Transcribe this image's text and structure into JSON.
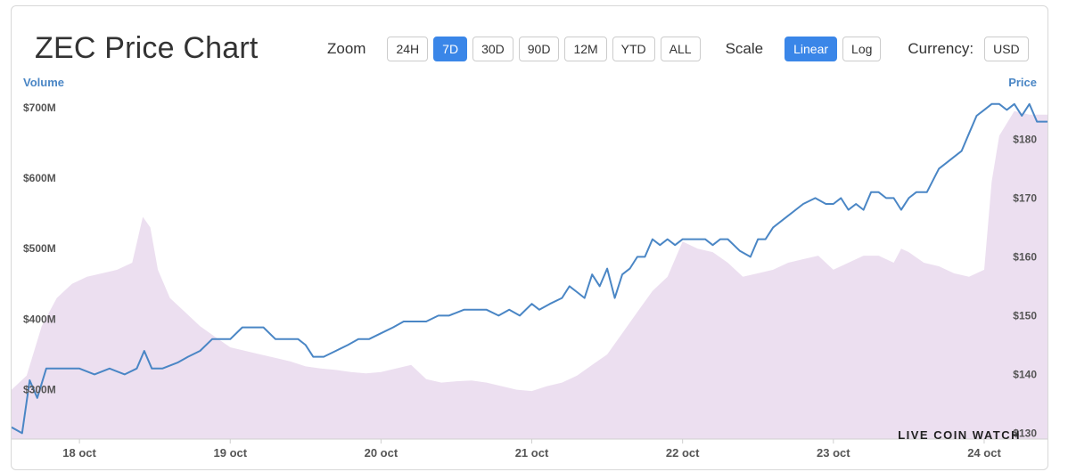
{
  "header": {
    "title": "ZEC Price Chart",
    "zoom_label": "Zoom",
    "zoom_options": [
      "24H",
      "7D",
      "30D",
      "90D",
      "12M",
      "YTD",
      "ALL"
    ],
    "zoom_selected": "7D",
    "scale_label": "Scale",
    "scale_options": [
      "Linear",
      "Log"
    ],
    "scale_selected": "Linear",
    "currency_label": "Currency:",
    "currency_value": "USD"
  },
  "watermark": "LIVE COIN WATCH",
  "colors": {
    "price_line": "#4a86c5",
    "volume_fill": "#ecdff0",
    "accent": "#3a86e8",
    "axis_title": "#4a86c5"
  },
  "chart_data": {
    "type": "line",
    "title": "ZEC Price Chart",
    "x_axis": {
      "tick_labels": [
        "18 oct",
        "19 oct",
        "20 oct",
        "21 oct",
        "22 oct",
        "23 oct",
        "24 oct"
      ],
      "range_days": [
        17.55,
        24.42
      ]
    },
    "y_left": {
      "label": "Volume",
      "tick_labels": [
        "$300M",
        "$400M",
        "$500M",
        "$600M",
        "$700M"
      ],
      "tick_values": [
        300,
        400,
        500,
        600,
        700
      ],
      "range": [
        230,
        730
      ],
      "unit": "USD millions"
    },
    "y_right": {
      "label": "Price",
      "tick_labels": [
        "$130",
        "$140",
        "$150",
        "$160",
        "$170",
        "$180"
      ],
      "tick_values": [
        130,
        140,
        150,
        160,
        170,
        180
      ],
      "range": [
        129,
        189
      ],
      "unit": "USD"
    },
    "grid": false,
    "series": [
      {
        "name": "Price",
        "type": "line",
        "axis": "right",
        "x": [
          17.55,
          17.62,
          17.67,
          17.72,
          17.78,
          17.85,
          17.92,
          18.0,
          18.1,
          18.2,
          18.3,
          18.38,
          18.43,
          18.48,
          18.55,
          18.65,
          18.72,
          18.8,
          18.88,
          18.95,
          19.0,
          19.08,
          19.15,
          19.22,
          19.3,
          19.38,
          19.45,
          19.5,
          19.55,
          19.62,
          19.7,
          19.78,
          19.85,
          19.92,
          20.0,
          20.08,
          20.15,
          20.22,
          20.3,
          20.38,
          20.45,
          20.55,
          20.62,
          20.7,
          20.78,
          20.85,
          20.92,
          21.0,
          21.05,
          21.12,
          21.2,
          21.25,
          21.3,
          21.35,
          21.4,
          21.45,
          21.5,
          21.55,
          21.6,
          21.65,
          21.7,
          21.75,
          21.8,
          21.85,
          21.9,
          21.95,
          22.0,
          22.05,
          22.1,
          22.15,
          22.2,
          22.25,
          22.3,
          22.38,
          22.45,
          22.5,
          22.55,
          22.6,
          22.7,
          22.8,
          22.88,
          22.95,
          23.0,
          23.05,
          23.1,
          23.15,
          23.2,
          23.25,
          23.3,
          23.35,
          23.4,
          23.45,
          23.5,
          23.55,
          23.62,
          23.7,
          23.75,
          23.8,
          23.85,
          23.9,
          23.95,
          24.0,
          24.05,
          24.1,
          24.15,
          24.2,
          24.25,
          24.3,
          24.35,
          24.42
        ],
        "values": [
          131,
          130,
          139,
          136,
          141,
          141,
          141,
          141,
          140,
          141,
          140,
          141,
          144,
          141,
          141,
          142,
          143,
          144,
          146,
          146,
          146,
          148,
          148,
          148,
          146,
          146,
          146,
          145,
          143,
          143,
          144,
          145,
          146,
          146,
          147,
          148,
          149,
          149,
          149,
          150,
          150,
          151,
          151,
          151,
          150,
          151,
          150,
          152,
          151,
          152,
          153,
          155,
          154,
          153,
          157,
          155,
          158,
          153,
          157,
          158,
          160,
          160,
          163,
          162,
          163,
          162,
          163,
          163,
          163,
          163,
          162,
          163,
          163,
          161,
          160,
          163,
          163,
          165,
          167,
          169,
          170,
          169,
          169,
          170,
          168,
          169,
          168,
          171,
          171,
          170,
          170,
          168,
          170,
          171,
          171,
          175,
          176,
          177,
          178,
          181,
          184,
          185,
          186,
          186,
          185,
          186,
          184,
          186,
          183,
          183
        ]
      },
      {
        "name": "Volume",
        "type": "area",
        "axis": "left",
        "x": [
          17.55,
          17.65,
          17.75,
          17.85,
          17.95,
          18.05,
          18.15,
          18.25,
          18.35,
          18.42,
          18.47,
          18.52,
          18.6,
          18.7,
          18.8,
          18.9,
          19.0,
          19.1,
          19.2,
          19.3,
          19.4,
          19.5,
          19.6,
          19.7,
          19.8,
          19.9,
          20.0,
          20.1,
          20.2,
          20.3,
          20.4,
          20.5,
          20.6,
          20.7,
          20.8,
          20.9,
          21.0,
          21.1,
          21.2,
          21.3,
          21.4,
          21.5,
          21.6,
          21.7,
          21.8,
          21.9,
          22.0,
          22.1,
          22.2,
          22.3,
          22.4,
          22.5,
          22.6,
          22.7,
          22.8,
          22.9,
          23.0,
          23.1,
          23.2,
          23.3,
          23.4,
          23.45,
          23.5,
          23.6,
          23.7,
          23.8,
          23.9,
          24.0,
          24.05,
          24.1,
          24.2,
          24.3,
          24.42
        ],
        "values": [
          300,
          320,
          390,
          430,
          450,
          460,
          465,
          470,
          480,
          545,
          530,
          470,
          430,
          410,
          390,
          375,
          360,
          355,
          350,
          345,
          340,
          333,
          330,
          328,
          325,
          323,
          325,
          330,
          335,
          315,
          310,
          312,
          313,
          310,
          305,
          300,
          298,
          305,
          310,
          320,
          335,
          350,
          380,
          410,
          440,
          460,
          510,
          500,
          495,
          480,
          460,
          465,
          470,
          480,
          485,
          490,
          470,
          480,
          490,
          490,
          480,
          500,
          495,
          480,
          475,
          465,
          460,
          470,
          595,
          660,
          695,
          690,
          690
        ]
      }
    ]
  }
}
